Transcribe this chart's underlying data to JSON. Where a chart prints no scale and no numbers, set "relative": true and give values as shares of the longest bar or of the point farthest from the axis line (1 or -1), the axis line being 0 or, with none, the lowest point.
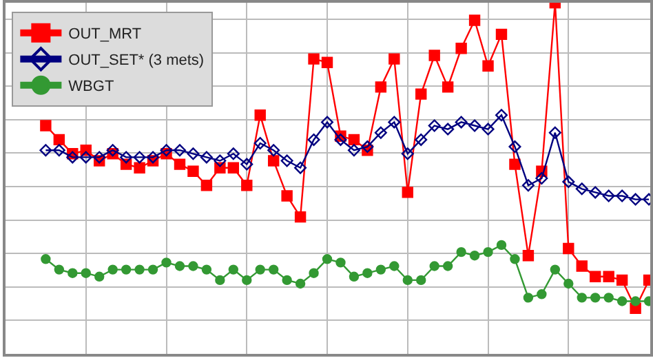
{
  "chart_data": {
    "type": "line",
    "relative": true,
    "tick_labels": false,
    "grid": true,
    "legend": "top left",
    "line_style": "solid",
    "categories": [
      null,
      null,
      null,
      null,
      null,
      null,
      null,
      null,
      null,
      null,
      null,
      null,
      null,
      null,
      null,
      null,
      null,
      null,
      null,
      null,
      null,
      null,
      null,
      null,
      null,
      null,
      null,
      null,
      null,
      null,
      null,
      null,
      null,
      null,
      null,
      null,
      null,
      null,
      null,
      null,
      null,
      null,
      null,
      null,
      null,
      null
    ],
    "series": [
      {
        "name": "OUT_MRT",
        "color": "#ff0000",
        "marker": "square",
        "values": [
          0.65,
          0.61,
          0.57,
          0.58,
          0.55,
          0.57,
          0.54,
          0.53,
          0.55,
          0.57,
          0.54,
          0.52,
          0.48,
          0.53,
          0.53,
          0.48,
          0.68,
          0.55,
          0.45,
          0.39,
          0.84,
          0.83,
          0.62,
          0.61,
          0.58,
          0.76,
          0.84,
          0.46,
          0.74,
          0.85,
          0.76,
          0.87,
          0.95,
          0.82,
          0.91,
          0.54,
          0.28,
          0.52,
          1,
          0.3,
          0.25,
          0.22,
          0.22,
          0.21,
          0.13,
          0.21
        ]
      },
      {
        "name": "OUT_SET* (3 mets)",
        "color": "#000080",
        "marker": "diamond",
        "values": [
          0.58,
          0.58,
          0.56,
          0.56,
          0.56,
          0.58,
          0.56,
          0.56,
          0.56,
          0.58,
          0.58,
          0.57,
          0.56,
          0.55,
          0.57,
          0.54,
          0.6,
          0.58,
          0.55,
          0.53,
          0.61,
          0.66,
          0.61,
          0.58,
          0.59,
          0.63,
          0.66,
          0.57,
          0.61,
          0.65,
          0.64,
          0.66,
          0.65,
          0.64,
          0.68,
          0.59,
          0.48,
          0.5,
          0.63,
          0.49,
          0.47,
          0.46,
          0.45,
          0.45,
          0.44,
          0.44
        ]
      },
      {
        "name": "WBGT",
        "color": "#339933",
        "marker": "circle",
        "values": [
          0.27,
          0.24,
          0.23,
          0.23,
          0.22,
          0.24,
          0.24,
          0.24,
          0.24,
          0.26,
          0.25,
          0.25,
          0.24,
          0.21,
          0.24,
          0.21,
          0.24,
          0.24,
          0.21,
          0.2,
          0.23,
          0.27,
          0.26,
          0.22,
          0.23,
          0.24,
          0.25,
          0.21,
          0.21,
          0.25,
          0.25,
          0.29,
          0.28,
          0.29,
          0.31,
          0.27,
          0.16,
          0.17,
          0.24,
          0.2,
          0.16,
          0.16,
          0.16,
          0.15,
          0.15,
          0.15
        ]
      }
    ]
  }
}
